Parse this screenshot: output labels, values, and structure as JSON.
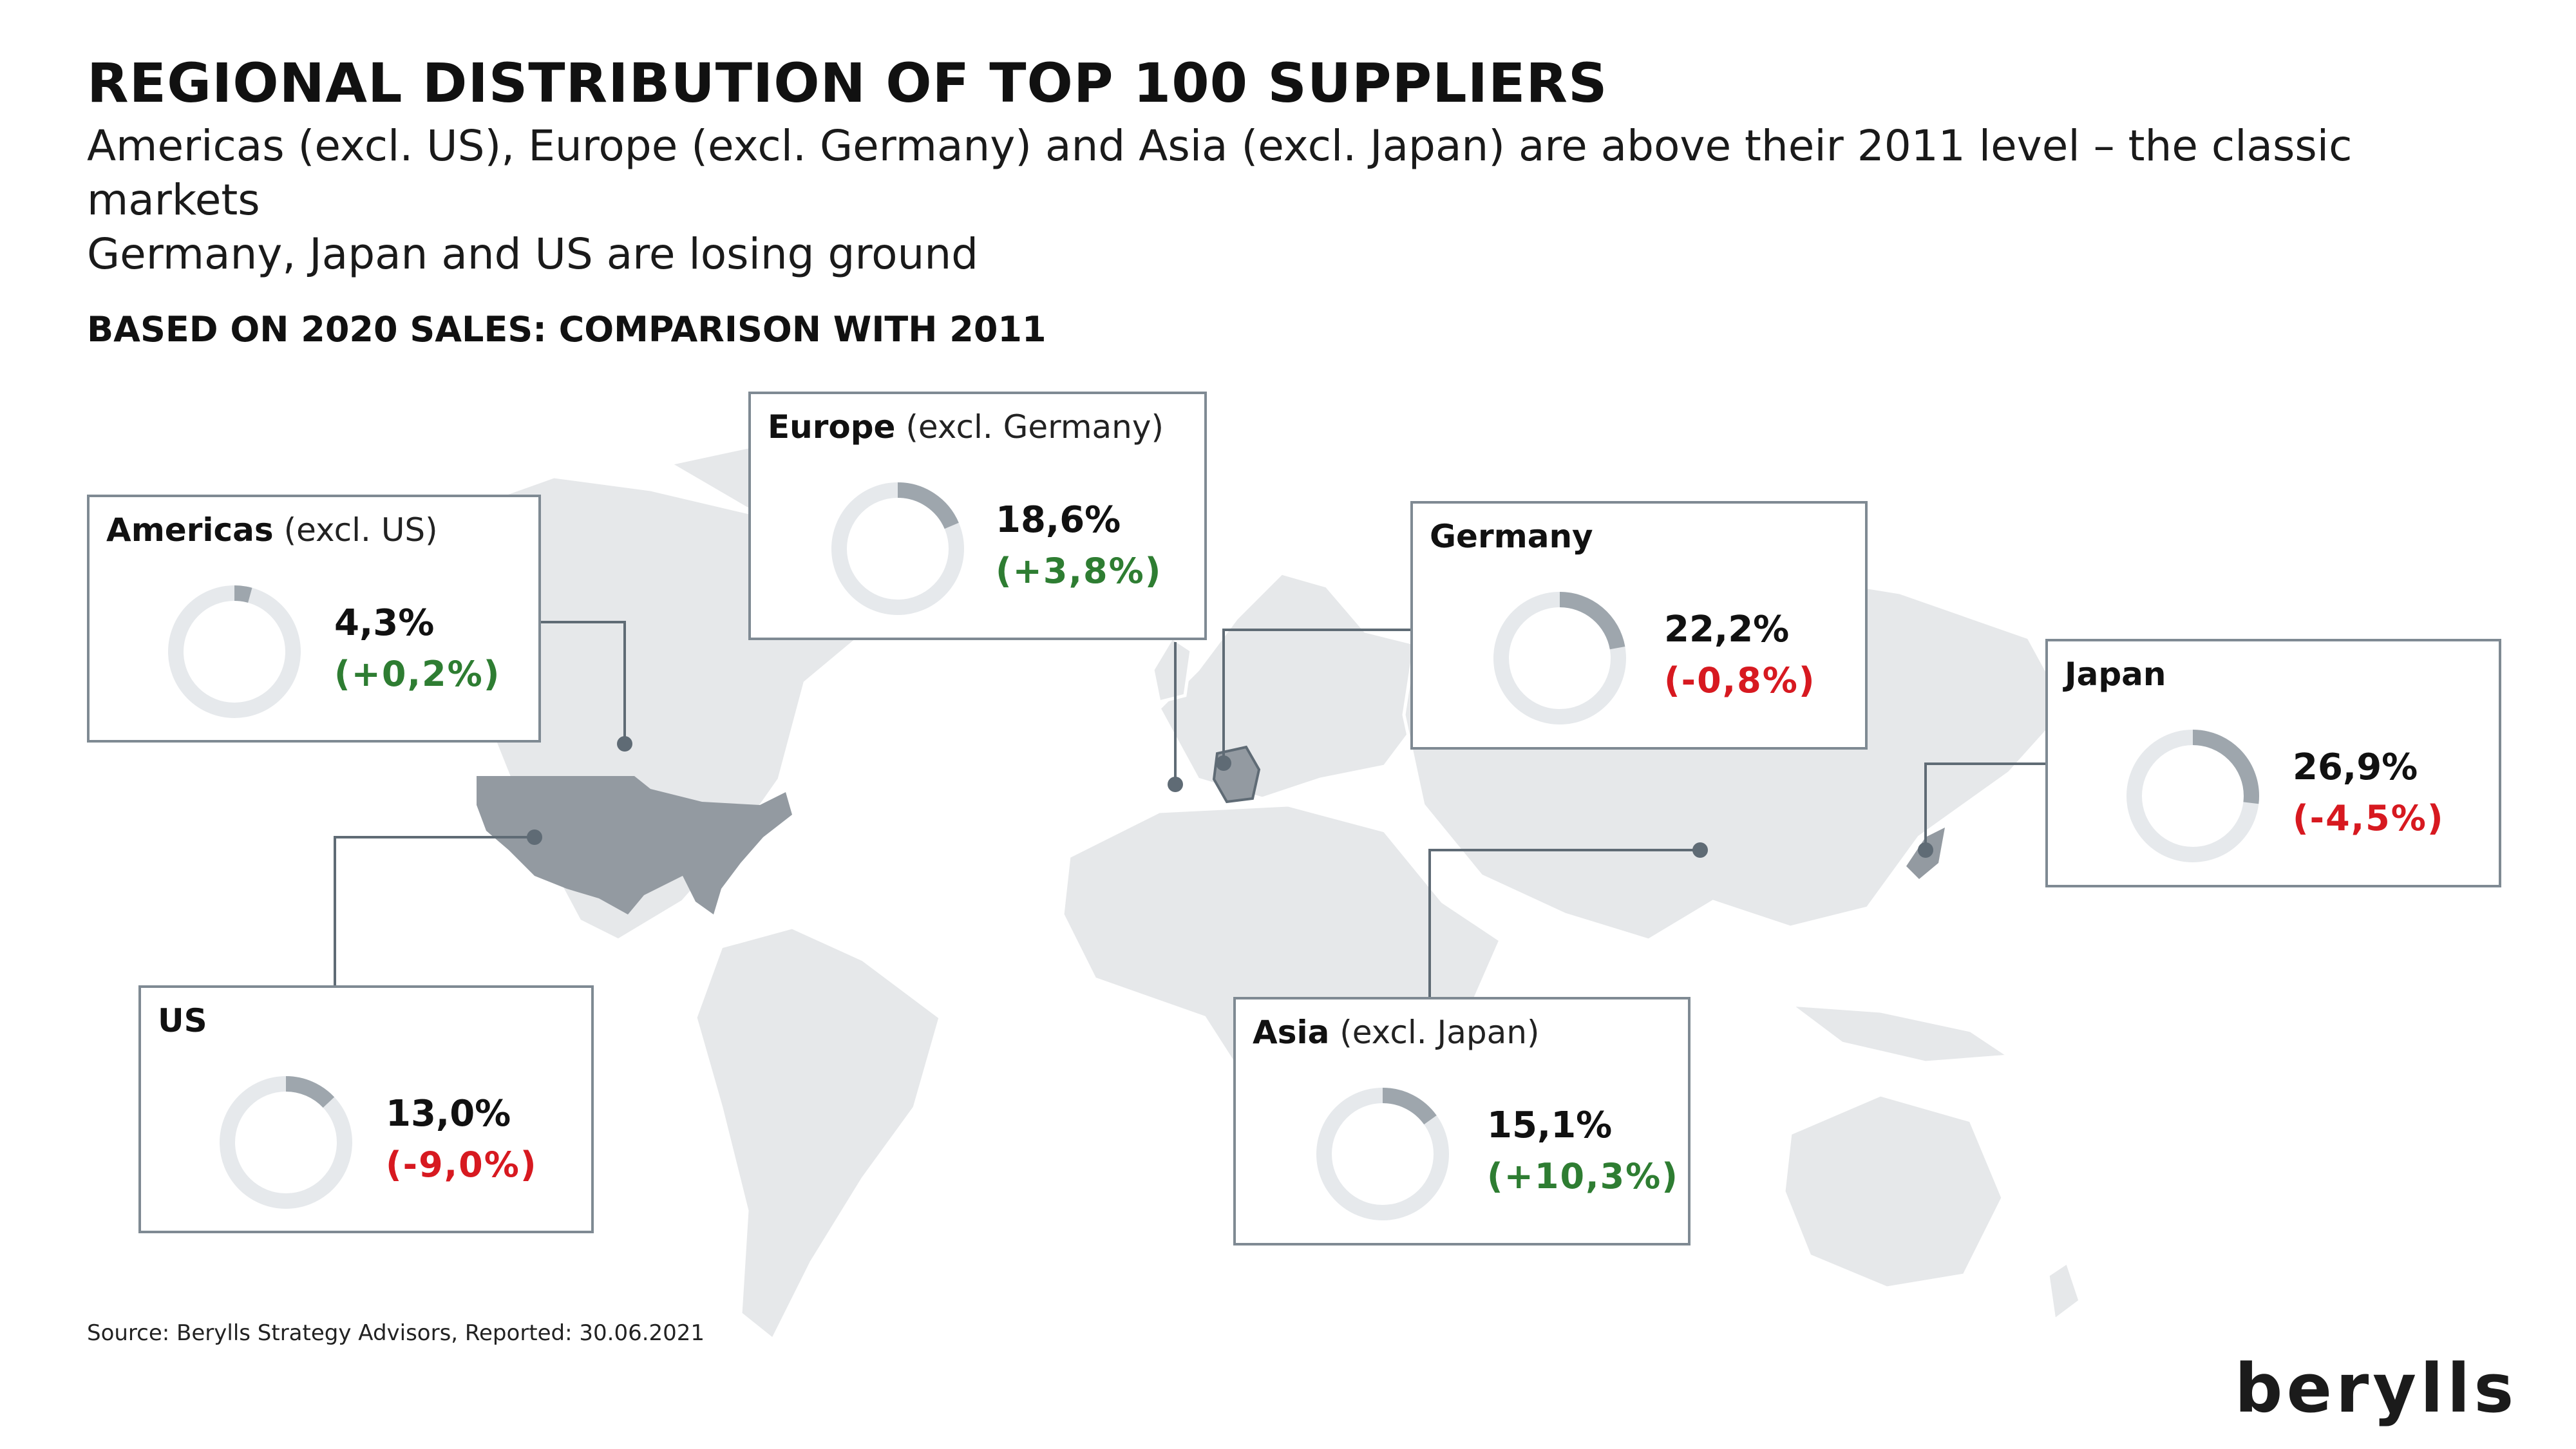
{
  "title": "REGIONAL DISTRIBUTION OF TOP 100 SUPPLIERS",
  "subtitle_line1": "Americas (excl. US), Europe (excl. Germany) and Asia (excl. Japan) are above their 2011 level – the classic markets",
  "subtitle_line2": "Germany, Japan and US are losing ground",
  "section_heading": "BASED ON 2020 SALES: COMPARISON WITH 2011",
  "source": "Source: Berylls Strategy Advisors, Reported: 30.06.2021",
  "logo": "berylls",
  "colors": {
    "donut_filled": "#9ea6ad",
    "donut_track": "#e6e9ec",
    "positive": "#2e7d32",
    "negative": "#d71920",
    "us_highlight": "#939aa1",
    "land": "#e6e8ea",
    "connector": "#5f6b75"
  },
  "chart_data": {
    "type": "donut",
    "unit": "%",
    "regions": [
      {
        "region": "Americas",
        "qualifier": "(excl. US)",
        "share": 4.3,
        "share_label": "4,3%",
        "change": 0.2,
        "change_label": "(+0,2%)"
      },
      {
        "region": "Europe",
        "qualifier": "(excl. Germany)",
        "share": 18.6,
        "share_label": "18,6%",
        "change": 3.8,
        "change_label": "(+3,8%)"
      },
      {
        "region": "Germany",
        "qualifier": "",
        "share": 22.2,
        "share_label": "22,2%",
        "change": -0.8,
        "change_label": "(-0,8%)"
      },
      {
        "region": "Japan",
        "qualifier": "",
        "share": 26.9,
        "share_label": "26,9%",
        "change": -4.5,
        "change_label": "(-4,5%)"
      },
      {
        "region": "US",
        "qualifier": "",
        "share": 13.0,
        "share_label": "13,0%",
        "change": -9.0,
        "change_label": "(-9,0%)"
      },
      {
        "region": "Asia",
        "qualifier": "(excl. Japan)",
        "share": 15.1,
        "share_label": "15,1%",
        "change": 10.3,
        "change_label": "(+10,3%)"
      }
    ]
  }
}
